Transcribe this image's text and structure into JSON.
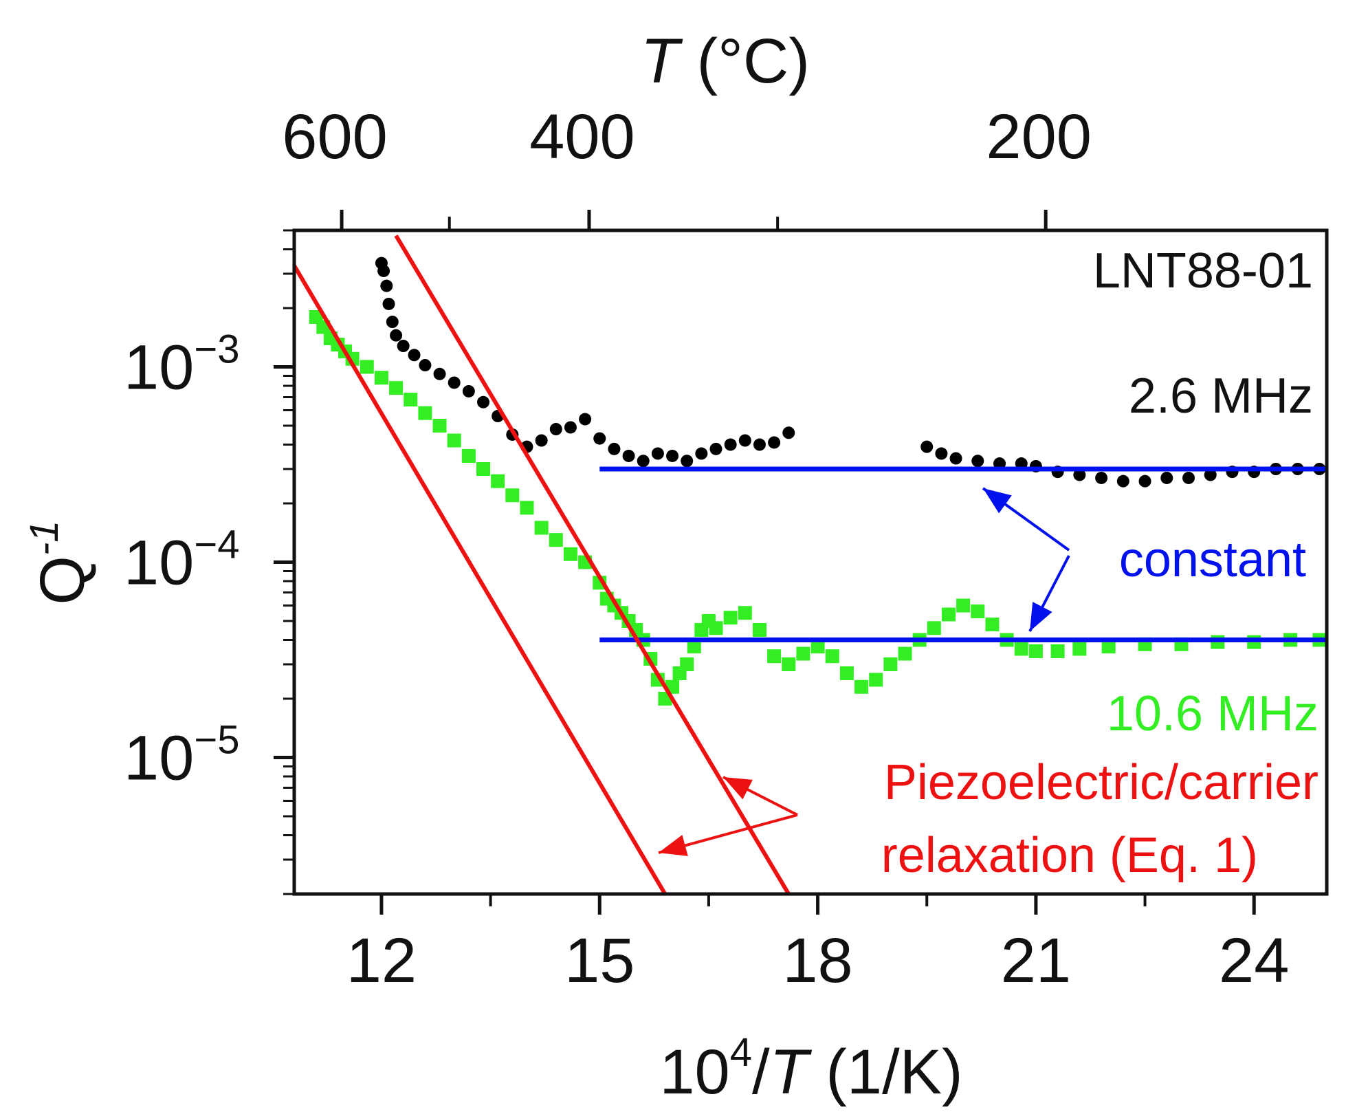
{
  "chart_data": {
    "type": "scatter",
    "sample_label": "LNT88-01",
    "x_axis": {
      "label_prefix": "10",
      "label_sup": "4",
      "label_slash": "/",
      "label_var": "T",
      "label_unit": " (1/K)",
      "range": [
        10.8,
        25.0
      ],
      "major_ticks": [
        12,
        15,
        18,
        21,
        24
      ],
      "minor_ticks": [
        13.5,
        16.5,
        19.5,
        22.5
      ]
    },
    "top_axis": {
      "label_var": "T",
      "label_unit": " (°C)",
      "ticks": [
        {
          "label": "600",
          "celsius": 600
        },
        {
          "label": "",
          "celsius": 500
        },
        {
          "label": "400",
          "celsius": 400
        },
        {
          "label": "",
          "celsius": 300
        },
        {
          "label": "200",
          "celsius": 200
        }
      ]
    },
    "y_axis": {
      "label_main": "Q",
      "label_sup": "-1",
      "scale": "log",
      "range": [
        2e-06,
        0.005
      ],
      "ticks": [
        {
          "base": "10",
          "exp": "−3",
          "value": 0.001
        },
        {
          "base": "10",
          "exp": "−4",
          "value": 0.0001
        },
        {
          "base": "10",
          "exp": "−5",
          "value": 1e-05
        }
      ]
    },
    "series": [
      {
        "name": "2.6 MHz",
        "color": "#000000",
        "marker": "circle",
        "points": [
          [
            12.0,
            0.0034
          ],
          [
            12.03,
            0.0031
          ],
          [
            12.07,
            0.0026
          ],
          [
            12.1,
            0.0021
          ],
          [
            12.15,
            0.0017
          ],
          [
            12.2,
            0.00145
          ],
          [
            12.3,
            0.00128
          ],
          [
            12.45,
            0.00115
          ],
          [
            12.6,
            0.00102
          ],
          [
            12.8,
            0.00092
          ],
          [
            13.0,
            0.00083
          ],
          [
            13.2,
            0.00075
          ],
          [
            13.4,
            0.00066
          ],
          [
            13.6,
            0.00056
          ],
          [
            13.8,
            0.00045
          ],
          [
            14.0,
            0.00039
          ],
          [
            14.2,
            0.00042
          ],
          [
            14.4,
            0.00048
          ],
          [
            14.6,
            0.00049
          ],
          [
            14.8,
            0.00054
          ],
          [
            15.0,
            0.00043
          ],
          [
            15.2,
            0.00038
          ],
          [
            15.4,
            0.00035
          ],
          [
            15.6,
            0.00033
          ],
          [
            15.8,
            0.00036
          ],
          [
            16.0,
            0.00035
          ],
          [
            16.2,
            0.00033
          ],
          [
            16.4,
            0.00036
          ],
          [
            16.6,
            0.00038
          ],
          [
            16.8,
            0.0004
          ],
          [
            17.0,
            0.00042
          ],
          [
            17.2,
            0.0004
          ],
          [
            17.4,
            0.00041
          ],
          [
            17.6,
            0.00046
          ],
          [
            19.5,
            0.00039
          ],
          [
            19.7,
            0.00036
          ],
          [
            19.9,
            0.00034
          ],
          [
            20.2,
            0.00033
          ],
          [
            20.5,
            0.00032
          ],
          [
            20.8,
            0.00032
          ],
          [
            21.0,
            0.00031
          ],
          [
            21.3,
            0.00029
          ],
          [
            21.6,
            0.00028
          ],
          [
            21.9,
            0.00027
          ],
          [
            22.2,
            0.00026
          ],
          [
            22.5,
            0.00026
          ],
          [
            22.8,
            0.00027
          ],
          [
            23.1,
            0.00027
          ],
          [
            23.4,
            0.00028
          ],
          [
            23.7,
            0.00029
          ],
          [
            24.0,
            0.00029
          ],
          [
            24.3,
            0.0003
          ],
          [
            24.6,
            0.0003
          ],
          [
            24.9,
            0.0003
          ]
        ]
      },
      {
        "name": "10.6 MHz",
        "color": "#33ee22",
        "marker": "square",
        "points": [
          [
            11.1,
            0.0018
          ],
          [
            11.2,
            0.0016
          ],
          [
            11.3,
            0.0014
          ],
          [
            11.4,
            0.0013
          ],
          [
            11.5,
            0.0012
          ],
          [
            11.6,
            0.0011
          ],
          [
            11.8,
            0.001
          ],
          [
            12.0,
            0.00088
          ],
          [
            12.2,
            0.00078
          ],
          [
            12.4,
            0.00068
          ],
          [
            12.6,
            0.00058
          ],
          [
            12.8,
            0.0005
          ],
          [
            13.0,
            0.00042
          ],
          [
            13.2,
            0.00035
          ],
          [
            13.4,
            0.0003
          ],
          [
            13.6,
            0.00026
          ],
          [
            13.8,
            0.00022
          ],
          [
            14.0,
            0.00019
          ],
          [
            14.2,
            0.00015
          ],
          [
            14.4,
            0.00013
          ],
          [
            14.6,
            0.00011
          ],
          [
            14.8,
            0.0001
          ],
          [
            15.0,
            7.85e-05
          ],
          [
            15.1,
            6.5e-05
          ],
          [
            15.2,
            6e-05
          ],
          [
            15.3,
            5.5e-05
          ],
          [
            15.4,
            5e-05
          ],
          [
            15.5,
            4.5e-05
          ],
          [
            15.6,
            4e-05
          ],
          [
            15.7,
            3.2e-05
          ],
          [
            15.8,
            2.5e-05
          ],
          [
            15.9,
            2e-05
          ],
          [
            16.0,
            2.3e-05
          ],
          [
            16.1,
            2.7e-05
          ],
          [
            16.2,
            3e-05
          ],
          [
            16.3,
            3.7e-05
          ],
          [
            16.4,
            4.5e-05
          ],
          [
            16.5,
            5e-05
          ],
          [
            16.6,
            4.6e-05
          ],
          [
            16.8,
            5.2e-05
          ],
          [
            17.0,
            5.5e-05
          ],
          [
            17.2,
            4.5e-05
          ],
          [
            17.4,
            3.3e-05
          ],
          [
            17.6,
            3e-05
          ],
          [
            17.8,
            3.4e-05
          ],
          [
            18.0,
            3.7e-05
          ],
          [
            18.2,
            3.3e-05
          ],
          [
            18.4,
            2.7e-05
          ],
          [
            18.6,
            2.3e-05
          ],
          [
            18.8,
            2.5e-05
          ],
          [
            19.0,
            3e-05
          ],
          [
            19.2,
            3.4e-05
          ],
          [
            19.4,
            4e-05
          ],
          [
            19.6,
            4.6e-05
          ],
          [
            19.8,
            5.4e-05
          ],
          [
            20.0,
            6e-05
          ],
          [
            20.2,
            5.6e-05
          ],
          [
            20.4,
            4.8e-05
          ],
          [
            20.6,
            4e-05
          ],
          [
            20.8,
            3.6e-05
          ],
          [
            21.0,
            3.5e-05
          ],
          [
            21.3,
            3.5e-05
          ],
          [
            21.6,
            3.6e-05
          ],
          [
            22.0,
            3.7e-05
          ],
          [
            22.5,
            3.8e-05
          ],
          [
            23.0,
            3.8e-05
          ],
          [
            23.5,
            3.9e-05
          ],
          [
            24.0,
            3.9e-05
          ],
          [
            24.5,
            4e-05
          ],
          [
            24.9,
            4e-05
          ]
        ]
      }
    ],
    "constant_lines": [
      {
        "value": 0.0003,
        "x_from": 15.0,
        "x_to": 25.0,
        "color": "#0011ee"
      },
      {
        "value": 4e-05,
        "x_from": 15.0,
        "x_to": 25.0,
        "color": "#0011ee"
      }
    ],
    "relaxation_lines": [
      {
        "points": [
          [
            10.8,
            0.0033
          ],
          [
            15.9,
            2e-06
          ]
        ],
        "color": "#ee1111"
      },
      {
        "points": [
          [
            12.2,
            0.0047
          ],
          [
            17.6,
            2e-06
          ]
        ],
        "color": "#ee1111"
      }
    ],
    "annotations": {
      "freq_high": {
        "text": "2.6 MHz",
        "color": "#111111"
      },
      "freq_low": {
        "text": "10.6 MHz",
        "color": "#33ee22"
      },
      "constant": {
        "text": "constant",
        "color": "#0011ee"
      },
      "relax_line1": {
        "text": "Piezoelectric/carrier",
        "color": "#ee1111"
      },
      "relax_line2": {
        "text": "relaxation (Eq. 1)",
        "color": "#ee1111"
      }
    }
  }
}
